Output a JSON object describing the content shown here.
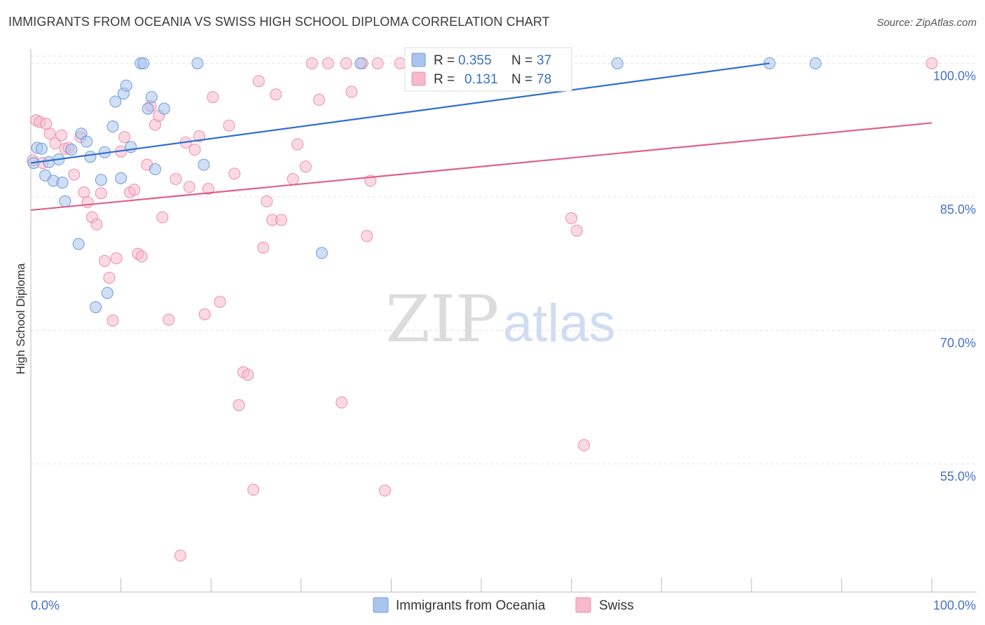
{
  "title": "IMMIGRANTS FROM OCEANIA VS SWISS HIGH SCHOOL DIPLOMA CORRELATION CHART",
  "source": "Source: ZipAtlas.com",
  "watermark": {
    "zip": "ZIP",
    "atlas": "atlas"
  },
  "colors": {
    "blue_fill": "#a9c5ee",
    "blue_stroke": "#6f9ad8",
    "blue_line": "#2f6fd0",
    "pink_fill": "#f7b9cc",
    "pink_stroke": "#ea8fab",
    "pink_line": "#e0608a",
    "tick_text": "#4472c4",
    "grid": "#e3e3e3"
  },
  "legend": {
    "rows": [
      {
        "r_label": "R =",
        "r_value": "0.355",
        "n_label": "N =",
        "n_value": "37",
        "color": "blue"
      },
      {
        "r_label": "R =",
        "r_value": "0.131",
        "n_label": "N =",
        "n_value": "78",
        "color": "pink"
      }
    ]
  },
  "bottom_legend": [
    "Immigrants from Oceania",
    "Swiss"
  ],
  "chart_data": {
    "type": "scatter",
    "title": "IMMIGRANTS FROM OCEANIA VS SWISS HIGH SCHOOL DIPLOMA CORRELATION CHART",
    "xlabel": "",
    "ylabel": "High School Diploma",
    "xlim": [
      0,
      100
    ],
    "ylim": [
      40.6,
      101.6
    ],
    "x_tick_labels": [
      "0.0%",
      "100.0%"
    ],
    "y_ticks": [
      55,
      70,
      85,
      100
    ],
    "y_tick_labels": [
      "55.0%",
      "70.0%",
      "85.0%",
      "100.0%"
    ],
    "grid": true,
    "legend_position": "top-center",
    "series": [
      {
        "name": "Immigrants from Oceania",
        "color": "blue",
        "trend": {
          "x": [
            0,
            82
          ],
          "y": [
            88.8,
            100.0
          ]
        },
        "points": [
          [
            0.3,
            88.8
          ],
          [
            0.7,
            90.5
          ],
          [
            1.2,
            90.4
          ],
          [
            1.6,
            87.4
          ],
          [
            2.0,
            88.9
          ],
          [
            2.5,
            86.8
          ],
          [
            3.1,
            89.2
          ],
          [
            3.5,
            86.6
          ],
          [
            3.8,
            84.5
          ],
          [
            4.5,
            90.3
          ],
          [
            5.3,
            79.7
          ],
          [
            5.6,
            92.1
          ],
          [
            6.2,
            91.2
          ],
          [
            6.6,
            89.5
          ],
          [
            7.2,
            72.6
          ],
          [
            7.8,
            86.9
          ],
          [
            8.2,
            90.0
          ],
          [
            8.5,
            74.2
          ],
          [
            9.1,
            92.9
          ],
          [
            9.4,
            95.7
          ],
          [
            10.0,
            87.1
          ],
          [
            10.3,
            96.6
          ],
          [
            10.6,
            97.5
          ],
          [
            11.1,
            90.6
          ],
          [
            12.2,
            100.0
          ],
          [
            12.5,
            100.0
          ],
          [
            13.0,
            94.9
          ],
          [
            13.4,
            96.2
          ],
          [
            13.8,
            88.1
          ],
          [
            14.8,
            94.9
          ],
          [
            18.5,
            100.0
          ],
          [
            19.2,
            88.6
          ],
          [
            32.3,
            78.7
          ],
          [
            36.6,
            100.0
          ],
          [
            65.1,
            100.0
          ],
          [
            82.0,
            100.0
          ],
          [
            87.1,
            100.0
          ]
        ]
      },
      {
        "name": "Swiss",
        "color": "pink",
        "trend": {
          "x": [
            0,
            100
          ],
          "y": [
            83.5,
            93.3
          ]
        },
        "points": [
          [
            0.2,
            89.1
          ],
          [
            0.6,
            93.6
          ],
          [
            1.0,
            93.4
          ],
          [
            1.3,
            88.8
          ],
          [
            1.7,
            93.2
          ],
          [
            2.1,
            92.1
          ],
          [
            2.7,
            91.0
          ],
          [
            3.4,
            91.9
          ],
          [
            3.8,
            90.4
          ],
          [
            4.2,
            90.5
          ],
          [
            4.8,
            87.5
          ],
          [
            5.5,
            91.7
          ],
          [
            5.9,
            85.5
          ],
          [
            6.3,
            84.4
          ],
          [
            6.8,
            82.7
          ],
          [
            7.3,
            81.9
          ],
          [
            7.8,
            85.4
          ],
          [
            8.2,
            77.8
          ],
          [
            8.7,
            75.9
          ],
          [
            9.1,
            71.1
          ],
          [
            9.5,
            78.1
          ],
          [
            10.0,
            90.1
          ],
          [
            10.4,
            91.7
          ],
          [
            11.0,
            85.5
          ],
          [
            11.5,
            85.8
          ],
          [
            11.9,
            78.6
          ],
          [
            12.3,
            78.3
          ],
          [
            12.9,
            88.6
          ],
          [
            13.3,
            95.2
          ],
          [
            13.8,
            93.1
          ],
          [
            14.2,
            94.1
          ],
          [
            14.6,
            82.7
          ],
          [
            15.3,
            71.2
          ],
          [
            16.1,
            87.0
          ],
          [
            16.6,
            44.7
          ],
          [
            17.2,
            91.1
          ],
          [
            17.6,
            86.1
          ],
          [
            18.2,
            90.3
          ],
          [
            18.7,
            91.8
          ],
          [
            19.3,
            71.8
          ],
          [
            19.7,
            85.9
          ],
          [
            20.2,
            96.2
          ],
          [
            21.0,
            73.2
          ],
          [
            22.0,
            93.0
          ],
          [
            22.6,
            87.6
          ],
          [
            23.1,
            61.6
          ],
          [
            23.6,
            65.3
          ],
          [
            24.1,
            65.0
          ],
          [
            24.7,
            52.1
          ],
          [
            25.3,
            98.0
          ],
          [
            25.8,
            79.3
          ],
          [
            26.2,
            84.5
          ],
          [
            26.8,
            82.4
          ],
          [
            27.2,
            96.5
          ],
          [
            27.8,
            82.4
          ],
          [
            29.1,
            87.0
          ],
          [
            29.6,
            90.9
          ],
          [
            30.5,
            88.4
          ],
          [
            31.2,
            100.0
          ],
          [
            32.0,
            95.9
          ],
          [
            33.0,
            100.0
          ],
          [
            34.5,
            61.9
          ],
          [
            35.0,
            100.0
          ],
          [
            35.6,
            96.8
          ],
          [
            36.8,
            100.0
          ],
          [
            37.3,
            80.6
          ],
          [
            37.7,
            86.8
          ],
          [
            38.5,
            100.0
          ],
          [
            39.3,
            52.0
          ],
          [
            41.0,
            100.0
          ],
          [
            46.0,
            100.0
          ],
          [
            48.5,
            100.0
          ],
          [
            49.0,
            100.0
          ],
          [
            55.0,
            100.0
          ],
          [
            60.0,
            82.6
          ],
          [
            60.6,
            81.2
          ],
          [
            61.4,
            57.1
          ],
          [
            100.0,
            100.0
          ]
        ]
      }
    ]
  }
}
